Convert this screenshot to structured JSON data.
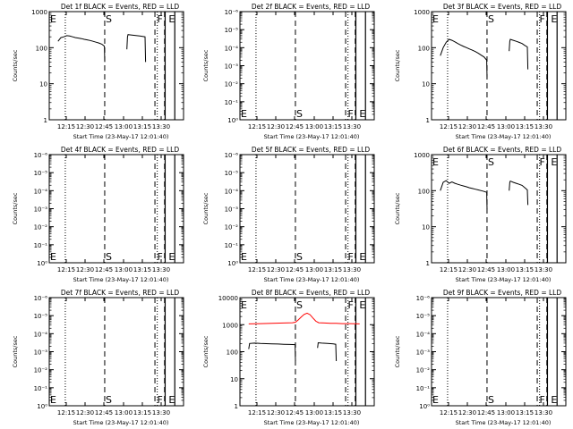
{
  "chart_data": [
    {
      "type": "line",
      "title": "Det 1f BLACK = Events, RED = LLD",
      "xlabel": "Start Time (23-May-17 12:01:40)",
      "ylabel": "Counts/sec",
      "scale": "log",
      "ylim": [
        1,
        1000
      ],
      "yticks": [
        "1000",
        "100",
        "10",
        "1"
      ],
      "xticks": [
        "12:15",
        "12:30",
        "12:45",
        "13:00",
        "13:15",
        "13:30"
      ],
      "markers": [
        "E",
        "S",
        "F",
        "E"
      ],
      "series": [
        {
          "name": "BLACK",
          "color": "#000000",
          "segments": [
            [
              [
                0,
                150
              ],
              [
                1,
                190
              ],
              [
                2,
                200
              ],
              [
                3,
                215
              ],
              [
                4,
                210
              ],
              [
                5,
                200
              ],
              [
                6,
                190
              ],
              [
                7,
                185
              ],
              [
                8,
                178
              ],
              [
                9,
                170
              ],
              [
                10,
                165
              ],
              [
                11,
                158
              ],
              [
                12,
                150
              ],
              [
                13,
                142
              ],
              [
                14,
                135
              ],
              [
                15,
                125
              ],
              [
                15.9,
                110
              ],
              [
                16,
                40
              ]
            ],
            [
              [
                23.6,
                90
              ],
              [
                23.8,
                200
              ],
              [
                24,
                230
              ],
              [
                25,
                225
              ],
              [
                26,
                220
              ],
              [
                27,
                215
              ],
              [
                28,
                210
              ],
              [
                29,
                205
              ],
              [
                29.8,
                200
              ],
              [
                30,
                40
              ]
            ]
          ]
        }
      ]
    },
    {
      "type": "line",
      "title": "Det 2f BLACK = Events, RED = LLD",
      "xlabel": "Start Time (23-May-17 12:01:40)",
      "ylabel": "Counts/sec",
      "scale": "log",
      "ylim": [
        1e-06,
        1
      ],
      "yticks": [
        "10⁻⁶",
        "10⁻⁵",
        "10⁻⁴",
        "10⁻³",
        "10⁻²",
        "10⁻¹",
        "10⁰"
      ],
      "xticks": [
        "12:15",
        "12:30",
        "12:45",
        "13:00",
        "13:15",
        "13:30"
      ],
      "markers": [
        "E",
        "S",
        "F",
        "E"
      ],
      "series": []
    },
    {
      "type": "line",
      "title": "Det 3f BLACK = Events, RED = LLD",
      "xlabel": "Start Time (23-May-17 12:01:40)",
      "ylabel": "Counts/sec",
      "scale": "log",
      "ylim": [
        1,
        1000
      ],
      "yticks": [
        "1000",
        "100",
        "10",
        "1"
      ],
      "xticks": [
        "12:15",
        "12:30",
        "12:45",
        "13:00",
        "13:15",
        "13:30"
      ],
      "markers": [
        "E",
        "S",
        "F",
        "E"
      ],
      "series": [
        {
          "name": "BLACK",
          "color": "#000000",
          "segments": [
            [
              [
                0,
                60
              ],
              [
                1,
                100
              ],
              [
                2,
                140
              ],
              [
                3,
                170
              ],
              [
                4,
                160
              ],
              [
                5,
                145
              ],
              [
                6,
                130
              ],
              [
                7,
                118
              ],
              [
                8,
                108
              ],
              [
                9,
                100
              ],
              [
                10,
                92
              ],
              [
                11,
                85
              ],
              [
                12,
                78
              ],
              [
                13,
                70
              ],
              [
                14,
                62
              ],
              [
                15,
                55
              ],
              [
                15.9,
                45
              ],
              [
                16,
                15
              ]
            ],
            [
              [
                23.6,
                80
              ],
              [
                23.8,
                150
              ],
              [
                24,
                170
              ],
              [
                25,
                160
              ],
              [
                26,
                150
              ],
              [
                27,
                140
              ],
              [
                28,
                130
              ],
              [
                29,
                115
              ],
              [
                29.8,
                105
              ],
              [
                30,
                25
              ]
            ]
          ]
        }
      ]
    },
    {
      "type": "line",
      "title": "Det 4f BLACK = Events, RED = LLD",
      "xlabel": "Start Time (23-May-17 12:01:40)",
      "ylabel": "Counts/sec",
      "scale": "log",
      "ylim": [
        1e-06,
        1
      ],
      "yticks": [
        "10⁻⁶",
        "10⁻⁵",
        "10⁻⁴",
        "10⁻³",
        "10⁻²",
        "10⁻¹",
        "10⁰"
      ],
      "xticks": [
        "12:15",
        "12:30",
        "12:45",
        "13:00",
        "13:15",
        "13:30"
      ],
      "markers": [
        "E",
        "S",
        "F",
        "E"
      ],
      "series": []
    },
    {
      "type": "line",
      "title": "Det 5f BLACK = Events, RED = LLD",
      "xlabel": "Start Time (23-May-17 12:01:40)",
      "ylabel": "Counts/sec",
      "scale": "log",
      "ylim": [
        1e-06,
        1
      ],
      "yticks": [
        "10⁻⁶",
        "10⁻⁵",
        "10⁻⁴",
        "10⁻³",
        "10⁻²",
        "10⁻¹",
        "10⁰"
      ],
      "xticks": [
        "12:15",
        "12:30",
        "12:45",
        "13:00",
        "13:15",
        "13:30"
      ],
      "markers": [
        "E",
        "S",
        "F",
        "E"
      ],
      "series": []
    },
    {
      "type": "line",
      "title": "Det 6f BLACK = Events, RED = LLD",
      "xlabel": "Start Time (23-May-17 12:01:40)",
      "ylabel": "Counts/sec",
      "scale": "log",
      "ylim": [
        1,
        1000
      ],
      "yticks": [
        "1000",
        "100",
        "10",
        "1"
      ],
      "xticks": [
        "12:15",
        "12:30",
        "12:45",
        "13:00",
        "13:15",
        "13:30"
      ],
      "markers": [
        "E",
        "S",
        "F",
        "E"
      ],
      "series": [
        {
          "name": "BLACK",
          "color": "#000000",
          "segments": [
            [
              [
                0,
                100
              ],
              [
                1,
                170
              ],
              [
                2,
                190
              ],
              [
                3,
                160
              ],
              [
                4,
                175
              ],
              [
                5,
                160
              ],
              [
                6,
                150
              ],
              [
                7,
                142
              ],
              [
                8,
                135
              ],
              [
                9,
                128
              ],
              [
                10,
                120
              ],
              [
                11,
                115
              ],
              [
                12,
                110
              ],
              [
                13,
                105
              ],
              [
                14,
                100
              ],
              [
                15,
                95
              ],
              [
                15.9,
                90
              ],
              [
                16,
                30
              ]
            ],
            [
              [
                23.6,
                100
              ],
              [
                23.8,
                170
              ],
              [
                24,
                185
              ],
              [
                25,
                170
              ],
              [
                26,
                160
              ],
              [
                27,
                150
              ],
              [
                28,
                140
              ],
              [
                29,
                120
              ],
              [
                29.8,
                105
              ],
              [
                30,
                40
              ]
            ]
          ]
        }
      ]
    },
    {
      "type": "line",
      "title": "Det 7f BLACK = Events, RED = LLD",
      "xlabel": "Start Time (23-May-17 12:01:40)",
      "ylabel": "Counts/sec",
      "scale": "log",
      "ylim": [
        1e-06,
        1
      ],
      "yticks": [
        "10⁻⁶",
        "10⁻⁵",
        "10⁻⁴",
        "10⁻³",
        "10⁻²",
        "10⁻¹",
        "10⁰"
      ],
      "xticks": [
        "12:15",
        "12:30",
        "12:45",
        "13:00",
        "13:15",
        "13:30"
      ],
      "markers": [
        "E",
        "S",
        "F",
        "E"
      ],
      "series": []
    },
    {
      "type": "line",
      "title": "Det 8f BLACK = Events, RED = LLD",
      "xlabel": "Start Time (23-May-17 12:01:40)",
      "ylabel": "Counts/sec",
      "scale": "log",
      "ylim": [
        1,
        20000
      ],
      "yticks": [
        "10000",
        "1000",
        "100",
        "10",
        "1"
      ],
      "xticks": [
        "12:15",
        "12:30",
        "12:45",
        "13:00",
        "13:15",
        "13:30"
      ],
      "markers": [
        "E",
        "S",
        "F",
        "E"
      ],
      "series": [
        {
          "name": "BLACK",
          "color": "#000000",
          "segments": [
            [
              [
                0,
                180
              ],
              [
                0.3,
                300
              ],
              [
                2,
                310
              ],
              [
                4,
                300
              ],
              [
                6,
                295
              ],
              [
                8,
                290
              ],
              [
                10,
                285
              ],
              [
                12,
                280
              ],
              [
                14,
                275
              ],
              [
                15.9,
                270
              ],
              [
                16,
                60
              ]
            ],
            [
              [
                23.6,
                200
              ],
              [
                23.8,
                320
              ],
              [
                25,
                310
              ],
              [
                27,
                300
              ],
              [
                29,
                290
              ],
              [
                29.8,
                280
              ],
              [
                30,
                60
              ]
            ]
          ]
        },
        {
          "name": "RED",
          "color": "#ff0000",
          "segments": [
            [
              [
                0,
                1800
              ],
              [
                4,
                1850
              ],
              [
                8,
                1900
              ],
              [
                12,
                1950
              ],
              [
                15,
                2000
              ],
              [
                16,
                2100
              ],
              [
                17,
                2600
              ],
              [
                18,
                3400
              ],
              [
                19,
                4300
              ],
              [
                20,
                4800
              ],
              [
                21,
                4200
              ],
              [
                22,
                3100
              ],
              [
                23,
                2300
              ],
              [
                24,
                2000
              ],
              [
                26,
                1950
              ],
              [
                28,
                1900
              ],
              [
                30,
                1900
              ],
              [
                32,
                1850
              ],
              [
                35,
                1850
              ],
              [
                38,
                1800
              ]
            ]
          ]
        }
      ]
    },
    {
      "type": "line",
      "title": "Det 9f BLACK = Events, RED = LLD",
      "xlabel": "Start Time (23-May-17 12:01:40)",
      "ylabel": "Counts/sec",
      "scale": "log",
      "ylim": [
        1e-06,
        1
      ],
      "yticks": [
        "10⁻⁶",
        "10⁻⁵",
        "10⁻⁴",
        "10⁻³",
        "10⁻²",
        "10⁻¹",
        "10⁰"
      ],
      "xticks": [
        "12:15",
        "12:30",
        "12:45",
        "13:00",
        "13:15",
        "13:30"
      ],
      "markers": [
        "E",
        "S",
        "F",
        "E"
      ],
      "series": []
    }
  ]
}
